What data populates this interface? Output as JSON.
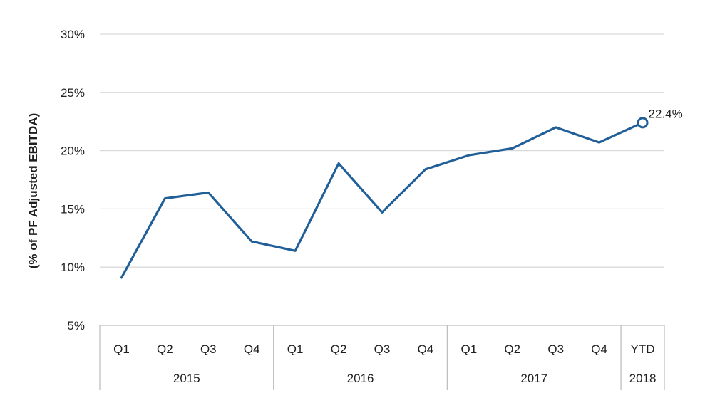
{
  "chart_data": {
    "type": "line",
    "title": "",
    "xlabel": "",
    "ylabel": "(% of PF Adjusted EBITDA)",
    "ylim": [
      5,
      30
    ],
    "y_ticks": [
      5,
      10,
      15,
      20,
      25,
      30
    ],
    "y_tick_labels": [
      "5%",
      "10%",
      "15%",
      "20%",
      "25%",
      "30%"
    ],
    "grid": true,
    "categories": [
      "Q1",
      "Q2",
      "Q3",
      "Q4",
      "Q1",
      "Q2",
      "Q3",
      "Q4",
      "Q1",
      "Q2",
      "Q3",
      "Q4",
      "YTD"
    ],
    "groups": [
      {
        "label": "2015",
        "count": 4
      },
      {
        "label": "2016",
        "count": 4
      },
      {
        "label": "2017",
        "count": 4
      },
      {
        "label": "2018",
        "count": 1
      }
    ],
    "series": [
      {
        "values": [
          9.1,
          15.9,
          16.4,
          12.2,
          11.4,
          18.9,
          14.7,
          18.4,
          19.6,
          20.2,
          22.0,
          20.7,
          22.4
        ],
        "color": "#215f98"
      }
    ],
    "annotations": [
      {
        "index": 12,
        "text": "22.4%",
        "marker": "open-circle"
      }
    ]
  }
}
